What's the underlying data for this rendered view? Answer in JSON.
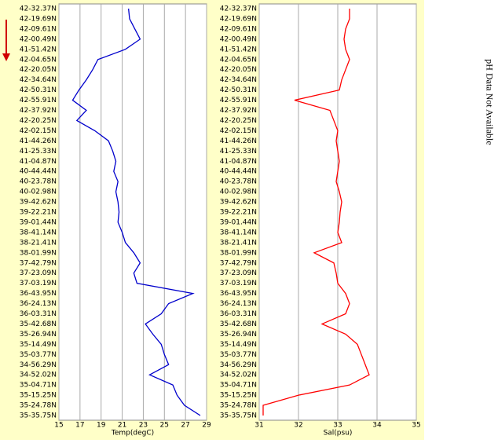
{
  "chart_data": [
    {
      "type": "line",
      "x_label": "Temp(degC)",
      "categories": [
        "42-32.37N",
        "42-19.69N",
        "42-09.61N",
        "42-00.49N",
        "41-51.42N",
        "42-04.65N",
        "42-20.05N",
        "42-34.64N",
        "42-50.31N",
        "42-55.91N",
        "42-37.92N",
        "42-20.25N",
        "42-02.15N",
        "41-44.26N",
        "41-25.33N",
        "41-04.87N",
        "40-44.44N",
        "40-23.78N",
        "40-02.98N",
        "39-42.62N",
        "39-22.21N",
        "39-01.44N",
        "38-41.14N",
        "38-21.41N",
        "38-01.99N",
        "37-42.79N",
        "37-23.09N",
        "37-03.19N",
        "36-43.95N",
        "36-24.13N",
        "36-03.31N",
        "35-42.68N",
        "35-26.94N",
        "35-14.49N",
        "35-03.77N",
        "34-56.29N",
        "34-52.02N",
        "35-04.71N",
        "35-15.25N",
        "35-24.78N",
        "35-35.75N"
      ],
      "values": [
        21.6,
        21.7,
        22.2,
        22.7,
        21.3,
        18.7,
        18.2,
        17.6,
        16.9,
        16.3,
        17.6,
        16.7,
        18.4,
        19.7,
        20.1,
        20.4,
        20.2,
        20.6,
        20.4,
        20.6,
        20.7,
        20.6,
        21.0,
        21.3,
        22.1,
        22.7,
        22.1,
        22.4,
        27.7,
        25.4,
        24.7,
        23.2,
        23.9,
        24.7,
        25.0,
        25.4,
        23.6,
        25.8,
        26.2,
        26.9,
        28.4
      ],
      "color": "#0000cc",
      "xlim": [
        15,
        29
      ],
      "xticks": [
        15,
        17,
        19,
        21,
        23,
        25,
        27,
        29
      ],
      "grid": true
    },
    {
      "type": "line",
      "x_label": "Sal(psu)",
      "categories": [
        "42-32.37N",
        "42-19.69N",
        "42-09.61N",
        "42-00.49N",
        "41-51.42N",
        "42-04.65N",
        "42-20.05N",
        "42-34.64N",
        "42-50.31N",
        "42-55.91N",
        "42-37.92N",
        "42-20.25N",
        "42-02.15N",
        "41-44.26N",
        "41-25.33N",
        "41-04.87N",
        "40-44.44N",
        "40-23.78N",
        "40-02.98N",
        "39-42.62N",
        "39-22.21N",
        "39-01.44N",
        "38-41.14N",
        "38-21.41N",
        "38-01.99N",
        "37-42.79N",
        "37-23.09N",
        "37-03.19N",
        "36-43.95N",
        "36-24.13N",
        "36-03.31N",
        "35-42.68N",
        "35-26.94N",
        "35-14.49N",
        "35-03.77N",
        "34-56.29N",
        "34-52.02N",
        "35-04.71N",
        "35-15.25N",
        "35-24.78N",
        "35-35.75N"
      ],
      "values": [
        33.3,
        33.3,
        33.2,
        33.16,
        33.2,
        33.3,
        33.2,
        33.1,
        33.04,
        31.9,
        32.8,
        32.9,
        33.0,
        32.96,
        33.0,
        33.04,
        33.0,
        32.96,
        33.04,
        33.1,
        33.06,
        33.04,
        33.0,
        33.1,
        32.4,
        32.9,
        32.96,
        33.0,
        33.2,
        33.3,
        33.2,
        32.6,
        33.2,
        33.5,
        33.6,
        33.7,
        33.8,
        33.3,
        32.0,
        31.1,
        31.1
      ],
      "color": "#ff0000",
      "xlim": [
        31,
        35
      ],
      "xticks": [
        31,
        32,
        33,
        34,
        35
      ],
      "grid": true
    }
  ],
  "side_note": "pH Data Not Available"
}
